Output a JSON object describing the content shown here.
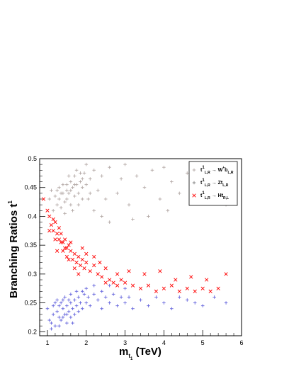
{
  "chart_data": {
    "type": "scatter",
    "title": "",
    "xlabel_main": "m",
    "xlabel_sub": "t",
    "xlabel_subsub": "1",
    "xlabel_unit": " (TeV)",
    "ylabel_main": "Branching Ratios t",
    "ylabel_sup": "1",
    "xlim": [
      0.8,
      6.0
    ],
    "ylim": [
      0.193,
      0.5
    ],
    "xticks": [
      "1",
      "2",
      "3",
      "4",
      "5",
      "6"
    ],
    "yticks": [
      "0.2",
      "0.25",
      "0.3",
      "0.35",
      "0.4",
      "0.45",
      "0.5"
    ],
    "legend_position": "top-right",
    "colors": {
      "wb": "#b4a9a6",
      "zt": "#808080",
      "ht": "#ff0000",
      "blue": "#6666dd"
    },
    "legend": [
      {
        "base": "t",
        "sup": "1",
        "sub": "L,R",
        "arrow": " → ",
        "prod": "W",
        "prod_sup": "+",
        "tail": "b",
        "tail_sub": "L,R",
        "marker": "plus",
        "color": "#b4a9a6"
      },
      {
        "base": "t",
        "sup": "1",
        "sub": "L,R",
        "arrow": " → ",
        "prod": "Zt",
        "prod_sup": "",
        "tail": "",
        "tail_sub": "L,R",
        "marker": "plus",
        "color": "#808080"
      },
      {
        "base": "t",
        "sup": "1",
        "sub": "L,R",
        "arrow": " → ",
        "prod": "Ht",
        "prod_sup": "",
        "tail": "",
        "tail_sub": "R,L",
        "marker": "x",
        "color": "#ff0000"
      }
    ],
    "series": [
      {
        "name": "W+ b",
        "marker": "plus",
        "color": "#b4a9a6",
        "points": [
          [
            1.05,
            0.43
          ],
          [
            1.1,
            0.445
          ],
          [
            1.15,
            0.41
          ],
          [
            1.2,
            0.435
          ],
          [
            1.25,
            0.42
          ],
          [
            1.3,
            0.45
          ],
          [
            1.3,
            0.43
          ],
          [
            1.35,
            0.415
          ],
          [
            1.4,
            0.44
          ],
          [
            1.45,
            0.425
          ],
          [
            1.5,
            0.455
          ],
          [
            1.5,
            0.43
          ],
          [
            1.55,
            0.44
          ],
          [
            1.6,
            0.46
          ],
          [
            1.6,
            0.42
          ],
          [
            1.65,
            0.45
          ],
          [
            1.7,
            0.435
          ],
          [
            1.7,
            0.47
          ],
          [
            1.75,
            0.455
          ],
          [
            1.8,
            0.44
          ],
          [
            1.85,
            0.46
          ],
          [
            1.9,
            0.45
          ],
          [
            1.95,
            0.475
          ],
          [
            2.0,
            0.455
          ],
          [
            2.05,
            0.43
          ],
          [
            2.1,
            0.465
          ],
          [
            2.2,
            0.48
          ],
          [
            2.3,
            0.445
          ],
          [
            2.4,
            0.47
          ],
          [
            2.5,
            0.43
          ],
          [
            1.4,
            0.455
          ],
          [
            1.55,
            0.47
          ],
          [
            1.45,
            0.405
          ],
          [
            1.65,
            0.41
          ],
          [
            1.8,
            0.42
          ],
          [
            1.9,
            0.43
          ],
          [
            1.35,
            0.44
          ],
          [
            1.25,
            0.445
          ],
          [
            1.75,
            0.48
          ],
          [
            2.0,
            0.49
          ],
          [
            2.6,
            0.485
          ],
          [
            2.8,
            0.44
          ],
          [
            2.9,
            0.465
          ],
          [
            3.0,
            0.49
          ],
          [
            3.1,
            0.42
          ],
          [
            3.3,
            0.47
          ],
          [
            3.5,
            0.45
          ],
          [
            3.7,
            0.48
          ],
          [
            3.9,
            0.43
          ],
          [
            4.0,
            0.485
          ],
          [
            4.2,
            0.46
          ],
          [
            4.4,
            0.44
          ],
          [
            4.6,
            0.475
          ],
          [
            4.8,
            0.45
          ],
          [
            5.0,
            0.49
          ],
          [
            5.2,
            0.46
          ],
          [
            5.4,
            0.44
          ],
          [
            5.6,
            0.42
          ],
          [
            2.2,
            0.41
          ],
          [
            2.6,
            0.39
          ],
          [
            3.2,
            0.395
          ],
          [
            3.6,
            0.4
          ],
          [
            4.1,
            0.41
          ],
          [
            2.4,
            0.4
          ],
          [
            1.6,
            0.445
          ],
          [
            1.7,
            0.455
          ],
          [
            1.5,
            0.445
          ],
          [
            1.9,
            0.465
          ],
          [
            2.1,
            0.44
          ],
          [
            1.85,
            0.475
          ]
        ]
      },
      {
        "name": "Z t",
        "marker": "plus",
        "color": "#6666dd",
        "points": [
          [
            1.0,
            0.24
          ],
          [
            1.05,
            0.22
          ],
          [
            1.1,
            0.215
          ],
          [
            1.15,
            0.23
          ],
          [
            1.2,
            0.25
          ],
          [
            1.2,
            0.21
          ],
          [
            1.25,
            0.235
          ],
          [
            1.3,
            0.225
          ],
          [
            1.3,
            0.245
          ],
          [
            1.35,
            0.22
          ],
          [
            1.4,
            0.24
          ],
          [
            1.4,
            0.255
          ],
          [
            1.45,
            0.23
          ],
          [
            1.5,
            0.215
          ],
          [
            1.5,
            0.245
          ],
          [
            1.55,
            0.235
          ],
          [
            1.6,
            0.25
          ],
          [
            1.6,
            0.225
          ],
          [
            1.65,
            0.24
          ],
          [
            1.7,
            0.23
          ],
          [
            1.7,
            0.255
          ],
          [
            1.75,
            0.245
          ],
          [
            1.8,
            0.26
          ],
          [
            1.8,
            0.235
          ],
          [
            1.85,
            0.25
          ],
          [
            1.9,
            0.24
          ],
          [
            1.95,
            0.265
          ],
          [
            2.0,
            0.25
          ],
          [
            2.05,
            0.26
          ],
          [
            2.1,
            0.245
          ],
          [
            2.2,
            0.265
          ],
          [
            2.3,
            0.255
          ],
          [
            2.4,
            0.27
          ],
          [
            2.5,
            0.26
          ],
          [
            2.6,
            0.25
          ],
          [
            2.7,
            0.265
          ],
          [
            2.8,
            0.245
          ],
          [
            2.9,
            0.26
          ],
          [
            3.0,
            0.25
          ],
          [
            3.1,
            0.26
          ],
          [
            3.2,
            0.24
          ],
          [
            3.4,
            0.255
          ],
          [
            3.6,
            0.245
          ],
          [
            3.8,
            0.26
          ],
          [
            4.0,
            0.25
          ],
          [
            4.2,
            0.24
          ],
          [
            4.4,
            0.26
          ],
          [
            4.6,
            0.255
          ],
          [
            4.8,
            0.25
          ],
          [
            5.0,
            0.245
          ],
          [
            5.3,
            0.26
          ],
          [
            5.6,
            0.25
          ],
          [
            1.1,
            0.205
          ],
          [
            1.3,
            0.21
          ],
          [
            1.5,
            0.23
          ],
          [
            1.35,
            0.25
          ],
          [
            1.45,
            0.26
          ],
          [
            1.25,
            0.255
          ],
          [
            1.9,
            0.27
          ],
          [
            2.2,
            0.28
          ],
          [
            2.6,
            0.28
          ],
          [
            3.0,
            0.275
          ],
          [
            2.4,
            0.24
          ],
          [
            1.6,
            0.265
          ],
          [
            1.75,
            0.27
          ],
          [
            1.15,
            0.245
          ],
          [
            1.4,
            0.225
          ],
          [
            1.55,
            0.255
          ],
          [
            1.65,
            0.215
          ],
          [
            2.0,
            0.275
          ]
        ]
      },
      {
        "name": "H t",
        "marker": "x",
        "color": "#ff0000",
        "points": [
          [
            0.9,
            0.43
          ],
          [
            1.0,
            0.41
          ],
          [
            1.05,
            0.4
          ],
          [
            1.1,
            0.385
          ],
          [
            1.15,
            0.375
          ],
          [
            1.2,
            0.39
          ],
          [
            1.25,
            0.37
          ],
          [
            1.3,
            0.38
          ],
          [
            1.3,
            0.36
          ],
          [
            1.35,
            0.37
          ],
          [
            1.4,
            0.355
          ],
          [
            1.4,
            0.34
          ],
          [
            1.45,
            0.36
          ],
          [
            1.5,
            0.345
          ],
          [
            1.5,
            0.33
          ],
          [
            1.55,
            0.35
          ],
          [
            1.6,
            0.34
          ],
          [
            1.65,
            0.325
          ],
          [
            1.7,
            0.335
          ],
          [
            1.75,
            0.32
          ],
          [
            1.8,
            0.33
          ],
          [
            1.85,
            0.315
          ],
          [
            1.9,
            0.325
          ],
          [
            1.95,
            0.31
          ],
          [
            2.0,
            0.32
          ],
          [
            2.1,
            0.305
          ],
          [
            2.2,
            0.315
          ],
          [
            2.3,
            0.3
          ],
          [
            2.4,
            0.295
          ],
          [
            2.5,
            0.285
          ],
          [
            2.6,
            0.29
          ],
          [
            2.7,
            0.285
          ],
          [
            2.8,
            0.28
          ],
          [
            2.9,
            0.29
          ],
          [
            3.0,
            0.285
          ],
          [
            3.2,
            0.28
          ],
          [
            3.4,
            0.275
          ],
          [
            3.6,
            0.28
          ],
          [
            3.8,
            0.27
          ],
          [
            4.0,
            0.275
          ],
          [
            4.2,
            0.28
          ],
          [
            4.4,
            0.27
          ],
          [
            4.6,
            0.275
          ],
          [
            4.8,
            0.27
          ],
          [
            5.0,
            0.275
          ],
          [
            5.2,
            0.27
          ],
          [
            5.4,
            0.275
          ],
          [
            5.6,
            0.3
          ],
          [
            1.2,
            0.36
          ],
          [
            1.35,
            0.355
          ],
          [
            1.45,
            0.345
          ],
          [
            1.6,
            0.355
          ],
          [
            1.7,
            0.31
          ],
          [
            1.8,
            0.3
          ],
          [
            2.0,
            0.335
          ],
          [
            2.2,
            0.33
          ],
          [
            2.5,
            0.31
          ],
          [
            2.8,
            0.3
          ],
          [
            3.1,
            0.305
          ],
          [
            3.5,
            0.3
          ],
          [
            3.9,
            0.305
          ],
          [
            4.3,
            0.29
          ],
          [
            4.7,
            0.295
          ],
          [
            5.1,
            0.29
          ],
          [
            1.25,
            0.34
          ],
          [
            1.55,
            0.325
          ],
          [
            1.9,
            0.345
          ],
          [
            2.35,
            0.32
          ],
          [
            1.05,
            0.375
          ],
          [
            1.15,
            0.395
          ]
        ]
      }
    ]
  }
}
